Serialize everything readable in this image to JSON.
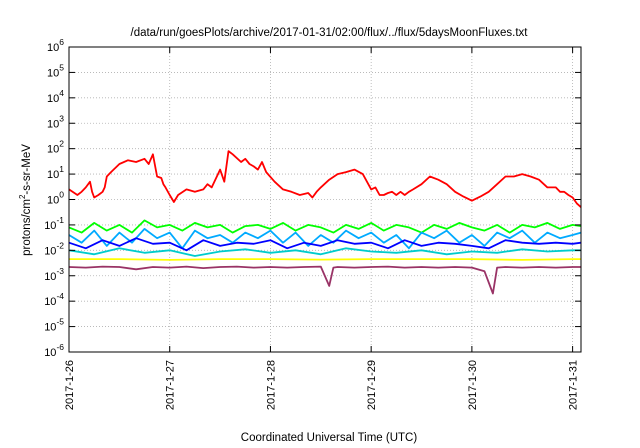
{
  "chart_data": {
    "type": "line",
    "title": "/data/run/goesPlots/archive/2017-01-31/02:00/flux/../flux/5daysMoonFluxes.txt",
    "xlabel": "Coordinated Universal Time (UTC)",
    "ylabel": {
      "base": "protons/cm",
      "sup": "2",
      "rest": "-s-sr-MeV"
    },
    "y_scale": "log",
    "ylim": [
      1e-06,
      1000000.0
    ],
    "y_ticks": [
      {
        "value": 1e-06,
        "exp": "-6"
      },
      {
        "value": 1e-05,
        "exp": "-5"
      },
      {
        "value": 0.0001,
        "exp": "-4"
      },
      {
        "value": 0.001,
        "exp": "-3"
      },
      {
        "value": 0.01,
        "exp": "-2"
      },
      {
        "value": 0.1,
        "exp": "-1"
      },
      {
        "value": 1,
        "exp": "0"
      },
      {
        "value": 10,
        "exp": "1"
      },
      {
        "value": 100,
        "exp": "2"
      },
      {
        "value": 1000,
        "exp": "3"
      },
      {
        "value": 10000,
        "exp": "4"
      },
      {
        "value": 100000,
        "exp": "5"
      },
      {
        "value": 1000000,
        "exp": "6"
      }
    ],
    "xlim": [
      "2017-01-26 00:00",
      "2017-01-31 02:00"
    ],
    "x_ticks": [
      "2017-1-26",
      "2017-1-27",
      "2017-1-28",
      "2017-1-29",
      "2017-1-30",
      "2017-1-31"
    ],
    "grid": true,
    "legend": "none",
    "series": [
      {
        "color": "#ff0000",
        "x": [
          "2017-01-26 00:00",
          "2017-01-26 02:00",
          "2017-01-26 03:00",
          "2017-01-26 04:00",
          "2017-01-26 05:00",
          "2017-01-26 05:30",
          "2017-01-26 06:00",
          "2017-01-26 07:00",
          "2017-01-26 08:00",
          "2017-01-26 08:30",
          "2017-01-26 09:00",
          "2017-01-26 10:00",
          "2017-01-26 12:00",
          "2017-01-26 14:00",
          "2017-01-26 16:00",
          "2017-01-26 18:00",
          "2017-01-26 19:00",
          "2017-01-26 20:00",
          "2017-01-26 21:00",
          "2017-01-26 22:00",
          "2017-01-26 22:30",
          "2017-01-26 23:00",
          "2017-01-27 00:00",
          "2017-01-27 01:00",
          "2017-01-27 02:00",
          "2017-01-27 04:00",
          "2017-01-27 06:00",
          "2017-01-27 08:00",
          "2017-01-27 09:00",
          "2017-01-27 10:00",
          "2017-01-27 12:00",
          "2017-01-27 13:00",
          "2017-01-27 14:00",
          "2017-01-27 15:00",
          "2017-01-27 17:00",
          "2017-01-27 18:00",
          "2017-01-27 19:00",
          "2017-01-27 20:00",
          "2017-01-27 21:00",
          "2017-01-27 22:00",
          "2017-01-27 23:00",
          "2017-01-28 01:00",
          "2017-01-28 03:00",
          "2017-01-28 05:00",
          "2017-01-28 07:00",
          "2017-01-28 09:00",
          "2017-01-28 10:00",
          "2017-01-28 11:00",
          "2017-01-28 12:00",
          "2017-01-28 14:00",
          "2017-01-28 16:00",
          "2017-01-28 18:00",
          "2017-01-28 20:00",
          "2017-01-28 22:00",
          "2017-01-29 00:00",
          "2017-01-29 01:00",
          "2017-01-29 02:00",
          "2017-01-29 03:00",
          "2017-01-29 04:00",
          "2017-01-29 05:00",
          "2017-01-29 06:00",
          "2017-01-29 07:00",
          "2017-01-29 08:00",
          "2017-01-29 09:00",
          "2017-01-29 10:00",
          "2017-01-29 12:00",
          "2017-01-29 14:00",
          "2017-01-29 16:00",
          "2017-01-29 18:00",
          "2017-01-29 20:00",
          "2017-01-29 22:00",
          "2017-01-30 00:00",
          "2017-01-30 02:00",
          "2017-01-30 04:00",
          "2017-01-30 06:00",
          "2017-01-30 08:00",
          "2017-01-30 10:00",
          "2017-01-30 12:00",
          "2017-01-30 14:00",
          "2017-01-30 16:00",
          "2017-01-30 18:00",
          "2017-01-30 20:00",
          "2017-01-30 21:00",
          "2017-01-30 22:00",
          "2017-01-30 23:00",
          "2017-01-31 00:00",
          "2017-01-31 01:00",
          "2017-01-31 02:00"
        ],
        "y": [
          2.5,
          1.5,
          2,
          3,
          5,
          2,
          1.2,
          1.5,
          2,
          3,
          8,
          12,
          25,
          35,
          30,
          40,
          25,
          60,
          8,
          7,
          4,
          3,
          1.5,
          0.8,
          1.5,
          2.5,
          2,
          2.5,
          4,
          3,
          15,
          5,
          80,
          60,
          30,
          40,
          25,
          20,
          15,
          30,
          12,
          5,
          2.5,
          2,
          1.5,
          1.8,
          1.2,
          2,
          3,
          6,
          10,
          12,
          15,
          10,
          2.5,
          3,
          1.5,
          1.5,
          1.8,
          2,
          1.5,
          2,
          1.5,
          2,
          2.5,
          4,
          8,
          6,
          4,
          2,
          1.3,
          0.9,
          1.3,
          2,
          4,
          8,
          8,
          10,
          8,
          6,
          3,
          3,
          2,
          2,
          1.5,
          1.2,
          0.7,
          0.5
        ]
      },
      {
        "color": "#00ff00",
        "x": [
          "2017-01-26 00:00",
          "2017-01-26 03:00",
          "2017-01-26 06:00",
          "2017-01-26 09:00",
          "2017-01-26 12:00",
          "2017-01-26 15:00",
          "2017-01-26 18:00",
          "2017-01-26 21:00",
          "2017-01-27 00:00",
          "2017-01-27 03:00",
          "2017-01-27 06:00",
          "2017-01-27 09:00",
          "2017-01-27 12:00",
          "2017-01-27 15:00",
          "2017-01-27 18:00",
          "2017-01-27 21:00",
          "2017-01-28 00:00",
          "2017-01-28 03:00",
          "2017-01-28 06:00",
          "2017-01-28 09:00",
          "2017-01-28 12:00",
          "2017-01-28 15:00",
          "2017-01-28 18:00",
          "2017-01-28 21:00",
          "2017-01-29 00:00",
          "2017-01-29 03:00",
          "2017-01-29 06:00",
          "2017-01-29 09:00",
          "2017-01-29 12:00",
          "2017-01-29 15:00",
          "2017-01-29 18:00",
          "2017-01-29 21:00",
          "2017-01-30 00:00",
          "2017-01-30 03:00",
          "2017-01-30 06:00",
          "2017-01-30 09:00",
          "2017-01-30 12:00",
          "2017-01-30 15:00",
          "2017-01-30 18:00",
          "2017-01-30 21:00",
          "2017-01-31 00:00",
          "2017-01-31 02:00"
        ],
        "y": [
          0.08,
          0.05,
          0.12,
          0.06,
          0.1,
          0.05,
          0.15,
          0.08,
          0.1,
          0.06,
          0.12,
          0.08,
          0.1,
          0.05,
          0.09,
          0.1,
          0.07,
          0.12,
          0.06,
          0.1,
          0.08,
          0.05,
          0.1,
          0.07,
          0.12,
          0.06,
          0.1,
          0.08,
          0.05,
          0.1,
          0.07,
          0.12,
          0.08,
          0.06,
          0.1,
          0.05,
          0.1,
          0.08,
          0.12,
          0.07,
          0.1,
          0.09
        ]
      },
      {
        "color": "#00aaff",
        "x": [
          "2017-01-26 00:00",
          "2017-01-26 03:00",
          "2017-01-26 06:00",
          "2017-01-26 09:00",
          "2017-01-26 12:00",
          "2017-01-26 15:00",
          "2017-01-26 18:00",
          "2017-01-26 21:00",
          "2017-01-27 00:00",
          "2017-01-27 03:00",
          "2017-01-27 06:00",
          "2017-01-27 09:00",
          "2017-01-27 12:00",
          "2017-01-27 15:00",
          "2017-01-27 18:00",
          "2017-01-27 21:00",
          "2017-01-28 00:00",
          "2017-01-28 03:00",
          "2017-01-28 06:00",
          "2017-01-28 09:00",
          "2017-01-28 12:00",
          "2017-01-28 15:00",
          "2017-01-28 18:00",
          "2017-01-28 21:00",
          "2017-01-29 00:00",
          "2017-01-29 03:00",
          "2017-01-29 06:00",
          "2017-01-29 09:00",
          "2017-01-29 12:00",
          "2017-01-29 15:00",
          "2017-01-29 18:00",
          "2017-01-29 21:00",
          "2017-01-30 00:00",
          "2017-01-30 03:00",
          "2017-01-30 06:00",
          "2017-01-30 09:00",
          "2017-01-30 12:00",
          "2017-01-30 15:00",
          "2017-01-30 18:00",
          "2017-01-30 21:00",
          "2017-01-31 00:00",
          "2017-01-31 02:00"
        ],
        "y": [
          0.04,
          0.02,
          0.06,
          0.015,
          0.05,
          0.02,
          0.07,
          0.03,
          0.05,
          0.012,
          0.06,
          0.03,
          0.04,
          0.02,
          0.05,
          0.03,
          0.06,
          0.02,
          0.05,
          0.015,
          0.04,
          0.02,
          0.06,
          0.03,
          0.05,
          0.02,
          0.04,
          0.012,
          0.05,
          0.03,
          0.06,
          0.02,
          0.04,
          0.015,
          0.05,
          0.03,
          0.06,
          0.02,
          0.05,
          0.03,
          0.04,
          0.05
        ]
      },
      {
        "color": "#0000ff",
        "x": [
          "2017-01-26 00:00",
          "2017-01-26 04:00",
          "2017-01-26 08:00",
          "2017-01-26 12:00",
          "2017-01-26 16:00",
          "2017-01-26 20:00",
          "2017-01-27 00:00",
          "2017-01-27 04:00",
          "2017-01-27 08:00",
          "2017-01-27 12:00",
          "2017-01-27 16:00",
          "2017-01-27 20:00",
          "2017-01-28 00:00",
          "2017-01-28 04:00",
          "2017-01-28 08:00",
          "2017-01-28 12:00",
          "2017-01-28 16:00",
          "2017-01-28 20:00",
          "2017-01-29 00:00",
          "2017-01-29 04:00",
          "2017-01-29 08:00",
          "2017-01-29 12:00",
          "2017-01-29 16:00",
          "2017-01-29 20:00",
          "2017-01-30 00:00",
          "2017-01-30 04:00",
          "2017-01-30 08:00",
          "2017-01-30 12:00",
          "2017-01-30 16:00",
          "2017-01-30 20:00",
          "2017-01-31 00:00",
          "2017-01-31 02:00"
        ],
        "y": [
          0.02,
          0.012,
          0.025,
          0.015,
          0.03,
          0.018,
          0.02,
          0.01,
          0.025,
          0.015,
          0.02,
          0.018,
          0.025,
          0.012,
          0.02,
          0.015,
          0.025,
          0.018,
          0.02,
          0.012,
          0.025,
          0.015,
          0.02,
          0.018,
          0.015,
          0.012,
          0.025,
          0.02,
          0.018,
          0.02,
          0.018,
          0.02
        ]
      },
      {
        "color": "#00cccc",
        "x": [
          "2017-01-26 00:00",
          "2017-01-26 06:00",
          "2017-01-26 12:00",
          "2017-01-26 18:00",
          "2017-01-27 00:00",
          "2017-01-27 06:00",
          "2017-01-27 12:00",
          "2017-01-27 18:00",
          "2017-01-28 00:00",
          "2017-01-28 06:00",
          "2017-01-28 12:00",
          "2017-01-28 18:00",
          "2017-01-29 00:00",
          "2017-01-29 06:00",
          "2017-01-29 12:00",
          "2017-01-29 18:00",
          "2017-01-30 00:00",
          "2017-01-30 06:00",
          "2017-01-30 12:00",
          "2017-01-30 18:00",
          "2017-01-31 00:00",
          "2017-01-31 02:00"
        ],
        "y": [
          0.01,
          0.007,
          0.012,
          0.008,
          0.01,
          0.006,
          0.009,
          0.011,
          0.008,
          0.01,
          0.007,
          0.012,
          0.009,
          0.008,
          0.01,
          0.007,
          0.009,
          0.008,
          0.011,
          0.009,
          0.01,
          0.01
        ]
      },
      {
        "color": "#ffff00",
        "x": [
          "2017-01-26 00:00",
          "2017-01-26 12:00",
          "2017-01-27 00:00",
          "2017-01-27 12:00",
          "2017-01-28 00:00",
          "2017-01-28 12:00",
          "2017-01-29 00:00",
          "2017-01-29 12:00",
          "2017-01-30 00:00",
          "2017-01-30 12:00",
          "2017-01-31 00:00",
          "2017-01-31 02:00"
        ],
        "y": [
          0.0045,
          0.0045,
          0.0042,
          0.0045,
          0.0045,
          0.0043,
          0.0045,
          0.0045,
          0.0045,
          0.0042,
          0.0045,
          0.0045
        ]
      },
      {
        "color": "#993366",
        "x": [
          "2017-01-26 00:00",
          "2017-01-26 04:00",
          "2017-01-26 08:00",
          "2017-01-26 12:00",
          "2017-01-26 16:00",
          "2017-01-26 20:00",
          "2017-01-27 00:00",
          "2017-01-27 04:00",
          "2017-01-27 08:00",
          "2017-01-27 12:00",
          "2017-01-27 16:00",
          "2017-01-27 20:00",
          "2017-01-28 00:00",
          "2017-01-28 04:00",
          "2017-01-28 08:00",
          "2017-01-28 12:00",
          "2017-01-28 14:00",
          "2017-01-28 15:00",
          "2017-01-28 16:00",
          "2017-01-28 20:00",
          "2017-01-29 00:00",
          "2017-01-29 04:00",
          "2017-01-29 08:00",
          "2017-01-29 12:00",
          "2017-01-29 16:00",
          "2017-01-29 20:00",
          "2017-01-30 00:00",
          "2017-01-30 03:00",
          "2017-01-30 05:00",
          "2017-01-30 06:00",
          "2017-01-30 08:00",
          "2017-01-30 12:00",
          "2017-01-30 16:00",
          "2017-01-30 20:00",
          "2017-01-31 00:00",
          "2017-01-31 02:00"
        ],
        "y": [
          0.0022,
          0.0021,
          0.0023,
          0.0022,
          0.0018,
          0.0022,
          0.0021,
          0.0023,
          0.002,
          0.0022,
          0.0023,
          0.0021,
          0.0022,
          0.0021,
          0.0022,
          0.0023,
          0.0004,
          0.0021,
          0.0022,
          0.0021,
          0.0022,
          0.0023,
          0.0021,
          0.0022,
          0.0021,
          0.0022,
          0.0021,
          0.0015,
          0.0002,
          0.0021,
          0.0022,
          0.0021,
          0.0022,
          0.0021,
          0.0022,
          0.0022
        ]
      }
    ]
  }
}
